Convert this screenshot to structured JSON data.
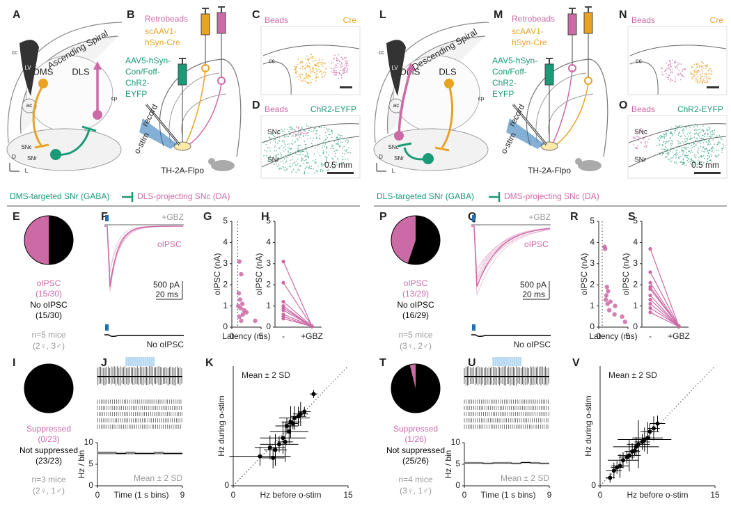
{
  "figure": {
    "sides": [
      {
        "letters": [
          "A",
          "B",
          "C",
          "D",
          "E",
          "F",
          "G",
          "H",
          "I",
          "J",
          "K"
        ],
        "spiral": "Ascending Spiral",
        "anatomy": [
          "DMS",
          "DLS",
          "LV",
          "cc",
          "ac",
          "cp",
          "SNc",
          "SNr",
          "D",
          "L"
        ],
        "injection": [
          "Retrobeads",
          "scAAV1-",
          "hSyn-Cre",
          "AAV5-hSyn-",
          "Con/Foff-",
          "ChR2-",
          "EYFP",
          "record",
          "o-stim",
          "TH-2A-Flpo"
        ],
        "histology": [
          "Beads",
          "Cre",
          "cc",
          "Beads",
          "ChR2-EYFP",
          "SNc",
          "SNr",
          "0.5 mm"
        ],
        "header": [
          "DMS-targeted SNr (GABA)",
          "DLS-projecting SNc (DA)"
        ],
        "traces": [
          "+GBZ",
          "oIPSC",
          "500 pA",
          "20 ms",
          "No oIPSC"
        ]
      },
      {
        "letters": [
          "L",
          "M",
          "N",
          "O",
          "P",
          "Q",
          "R",
          "S",
          "T",
          "U",
          "V"
        ],
        "spiral": "Descending Spiral",
        "anatomy": [
          "DMS",
          "DLS",
          "LV",
          "cc",
          "ac",
          "cp",
          "SNc",
          "SNr",
          "D",
          "L"
        ],
        "injection": [
          "Retrobeads",
          "scAAV1-",
          "hSyn-Cre",
          "AAV5-hSyn-",
          "Con/Foff-",
          "ChR2-",
          "EYFP",
          "record",
          "o-stim",
          "TH-2A-Flpo"
        ],
        "histology": [
          "Beads",
          "Cre",
          "cc",
          "Beads",
          "ChR2-EYFP",
          "SNc",
          "SNr",
          "0.5 mm"
        ],
        "header": [
          "DLS-targeted SNr (GABA)",
          "DMS-projecting SNc (DA)"
        ],
        "traces": [
          "+GBZ",
          "oIPSC",
          "500 pA",
          "20 ms",
          "No oIPSC"
        ]
      }
    ]
  },
  "chart_data": [
    {
      "type": "pie",
      "values": [
        15,
        15
      ],
      "colors": [
        "#cc6aa6",
        "#000000"
      ],
      "labels": [
        "oIPSC",
        "No oIPSC"
      ],
      "value_labels": [
        "(15/30)",
        "(15/30)"
      ],
      "annotations": [
        "n=5 mice",
        "(2♀, 3♂)"
      ]
    },
    {
      "type": "scatter",
      "x": [
        1.3,
        1.6,
        1.2,
        1.4,
        1.8,
        1.5,
        2.1,
        1.9,
        1.3,
        1.6,
        2.5,
        1.1,
        4.0
      ],
      "y": [
        3.1,
        2.5,
        1.6,
        1.3,
        1.1,
        0.9,
        0.8,
        0.6,
        0.5,
        0.3,
        0.7,
        1.0,
        0.3
      ],
      "xlim": [
        0,
        5
      ],
      "ylim": [
        0,
        5
      ],
      "xticks": [
        0,
        5
      ],
      "yticks": [
        0,
        1,
        2,
        3,
        4,
        5
      ],
      "xlabel": "Latency (ms)",
      "ylabel": "oIPSC (nA)",
      "color": "#cc6aa6",
      "xref": 1
    },
    {
      "type": "paired",
      "categories": [
        "-",
        "+GBZ"
      ],
      "series": [
        {
          "values": [
            3.1,
            0.05
          ]
        },
        {
          "values": [
            2.1,
            0.05
          ]
        },
        {
          "values": [
            1.2,
            0.05
          ]
        },
        {
          "values": [
            1.0,
            0.03
          ]
        },
        {
          "values": [
            0.9,
            0.05
          ]
        },
        {
          "values": [
            0.8,
            0.04
          ]
        },
        {
          "values": [
            0.6,
            0.05
          ]
        },
        {
          "values": [
            0.5,
            0.02
          ]
        },
        {
          "values": [
            0.4,
            0.03
          ]
        }
      ],
      "ylim": [
        0,
        5
      ],
      "yticks": [
        0,
        1,
        2,
        3,
        4,
        5
      ],
      "ylabel": "oIPSC (nA)",
      "color": "#cc6aa6"
    },
    {
      "type": "pie",
      "values": [
        0,
        23
      ],
      "colors": [
        "#cc6aa6",
        "#000000"
      ],
      "labels": [
        "Suppressed",
        "Not suppressed"
      ],
      "value_labels": [
        "(0/23)",
        "(23/23)"
      ],
      "annotations": [
        "n=3 mice",
        "(2♀, 1♂)"
      ]
    },
    {
      "type": "step",
      "values": [
        7.6,
        7.6,
        7.5,
        7.6,
        7.5,
        7.5,
        7.6,
        7.5,
        7.5
      ],
      "sd": [
        0.4,
        0.4,
        0.4,
        0.4,
        0.4,
        0.4,
        0.4,
        0.4,
        0.4
      ],
      "xlim": [
        0,
        9
      ],
      "xticks": [
        0,
        9
      ],
      "ylim": [
        0,
        10
      ],
      "yticks": [
        0,
        5,
        10
      ],
      "xlabel": "Time (1 s bins)",
      "ylabel": "Hz / bin",
      "annotation": "Mean ± 2 SD",
      "color": "#000000"
    },
    {
      "type": "scatter",
      "x": [
        10.5,
        9.3,
        8.8,
        8.5,
        8.0,
        7.5,
        7.0,
        7.3,
        7.8,
        6.5,
        6.8,
        5.5,
        4.8,
        6.0,
        3.5,
        5.2
      ],
      "y": [
        11.5,
        9.3,
        9.0,
        8.7,
        8.5,
        8.0,
        7.5,
        6.8,
        7.8,
        6.0,
        5.5,
        4.5,
        4.8,
        5.2,
        3.7,
        3.5
      ],
      "xerr": [
        0.5,
        0.8,
        1.0,
        1.0,
        2.0,
        1.2,
        1.5,
        2.5,
        0.7,
        3.0,
        1.0,
        1.5,
        2.0,
        2.5,
        4.0,
        1.5
      ],
      "yerr": [
        0.5,
        0.6,
        1.5,
        1.2,
        1.5,
        2.0,
        1.0,
        1.5,
        0.7,
        2.0,
        2.5,
        2.0,
        1.5,
        1.0,
        1.2,
        1.3
      ],
      "xlim": [
        0,
        15
      ],
      "ylim": [
        0,
        15
      ],
      "xticks": [
        0,
        15
      ],
      "yticks": [
        0
      ],
      "xlabel": "Hz before o-stim",
      "ylabel": "Hz during o-stim",
      "annotation": "Mean ± 2 SD",
      "color": "#000000",
      "diagonal": true
    },
    {
      "type": "pie",
      "values": [
        13,
        16
      ],
      "colors": [
        "#cc6aa6",
        "#000000"
      ],
      "labels": [
        "oIPSC",
        "No oIPSC"
      ],
      "value_labels": [
        "(13/29)",
        "(16/29)"
      ],
      "annotations": [
        "n=5 mice",
        "(3♀, 2♂)"
      ]
    },
    {
      "type": "scatter",
      "x": [
        1.0,
        1.1,
        1.4,
        1.6,
        1.3,
        1.2,
        1.5,
        2.0,
        1.8,
        2.8,
        2.7,
        4.0,
        4.5
      ],
      "y": [
        3.8,
        3.7,
        1.9,
        1.7,
        1.5,
        1.3,
        1.1,
        1.2,
        0.8,
        1.0,
        0.6,
        0.5,
        0.25
      ],
      "xlim": [
        0,
        5
      ],
      "ylim": [
        0,
        5
      ],
      "xticks": [
        0,
        5
      ],
      "yticks": [
        0,
        1,
        2,
        3,
        4,
        5
      ],
      "xlabel": "Latency (ms)",
      "ylabel": "oIPSC (nA)",
      "color": "#cc6aa6",
      "xref": 0.6
    },
    {
      "type": "paired",
      "categories": [
        "-",
        "+GBZ"
      ],
      "series": [
        {
          "values": [
            3.7,
            0.05
          ]
        },
        {
          "values": [
            2.6,
            0.05
          ]
        },
        {
          "values": [
            2.1,
            0.04
          ]
        },
        {
          "values": [
            1.9,
            0.03
          ]
        },
        {
          "values": [
            1.8,
            0.05
          ]
        },
        {
          "values": [
            1.5,
            0.02
          ]
        },
        {
          "values": [
            1.3,
            0.04
          ]
        },
        {
          "values": [
            1.1,
            0.03
          ]
        },
        {
          "values": [
            0.9,
            0.05
          ]
        },
        {
          "values": [
            0.7,
            0.02
          ]
        }
      ],
      "ylim": [
        0,
        5
      ],
      "yticks": [
        0,
        1,
        2,
        3,
        4,
        5
      ],
      "ylabel": "oIPSC (nA)",
      "color": "#cc6aa6"
    },
    {
      "type": "pie",
      "values": [
        1,
        25
      ],
      "colors": [
        "#cc6aa6",
        "#000000"
      ],
      "labels": [
        "Suppressed",
        "Not suppressed"
      ],
      "value_labels": [
        "(1/26)",
        "(25/26)"
      ],
      "annotations": [
        "n=4 mice",
        "(3♀, 1♂)"
      ]
    },
    {
      "type": "step",
      "values": [
        5.3,
        5.3,
        5.2,
        5.3,
        5.3,
        5.2,
        5.4,
        5.3,
        5.2
      ],
      "sd": [
        0.25,
        0.25,
        0.25,
        0.25,
        0.25,
        0.25,
        0.25,
        0.25,
        0.25
      ],
      "xlim": [
        0,
        9
      ],
      "xticks": [
        0,
        9
      ],
      "ylim": [
        0,
        10
      ],
      "yticks": [
        0,
        5,
        10
      ],
      "xlabel": "Time (1 s bins)",
      "ylabel": "Hz / bin",
      "annotation": "Mean ± 2 SD",
      "color": "#000000"
    },
    {
      "type": "scatter",
      "x": [
        7.5,
        7.0,
        6.5,
        6.2,
        5.8,
        5.5,
        5.0,
        4.7,
        4.2,
        3.8,
        3.5,
        3.0,
        2.6,
        2.2,
        1.8,
        1.3,
        4.5
      ],
      "y": [
        7.8,
        7.2,
        6.8,
        6.0,
        5.8,
        5.5,
        5.2,
        4.9,
        4.3,
        3.8,
        3.6,
        3.2,
        2.5,
        2.3,
        1.9,
        1.0,
        4.4
      ],
      "xerr": [
        1.0,
        0.8,
        1.2,
        2.0,
        3.5,
        1.0,
        1.5,
        3.0,
        1.0,
        1.5,
        1.0,
        2.0,
        1.2,
        0.8,
        1.0,
        0.6,
        0.6
      ],
      "yerr": [
        1.0,
        1.5,
        1.0,
        2.0,
        1.5,
        1.0,
        3.0,
        1.2,
        1.0,
        2.0,
        0.8,
        1.0,
        1.5,
        0.8,
        1.0,
        0.6,
        0.6
      ],
      "xlim": [
        0,
        15
      ],
      "ylim": [
        0,
        15
      ],
      "xticks": [
        0,
        15
      ],
      "yticks": [
        0
      ],
      "xlabel": "Hz before o-stim",
      "ylabel": "Hz during o-stim",
      "annotation": "Mean ± 2 SD",
      "color": "#000000",
      "diagonal": true
    }
  ]
}
